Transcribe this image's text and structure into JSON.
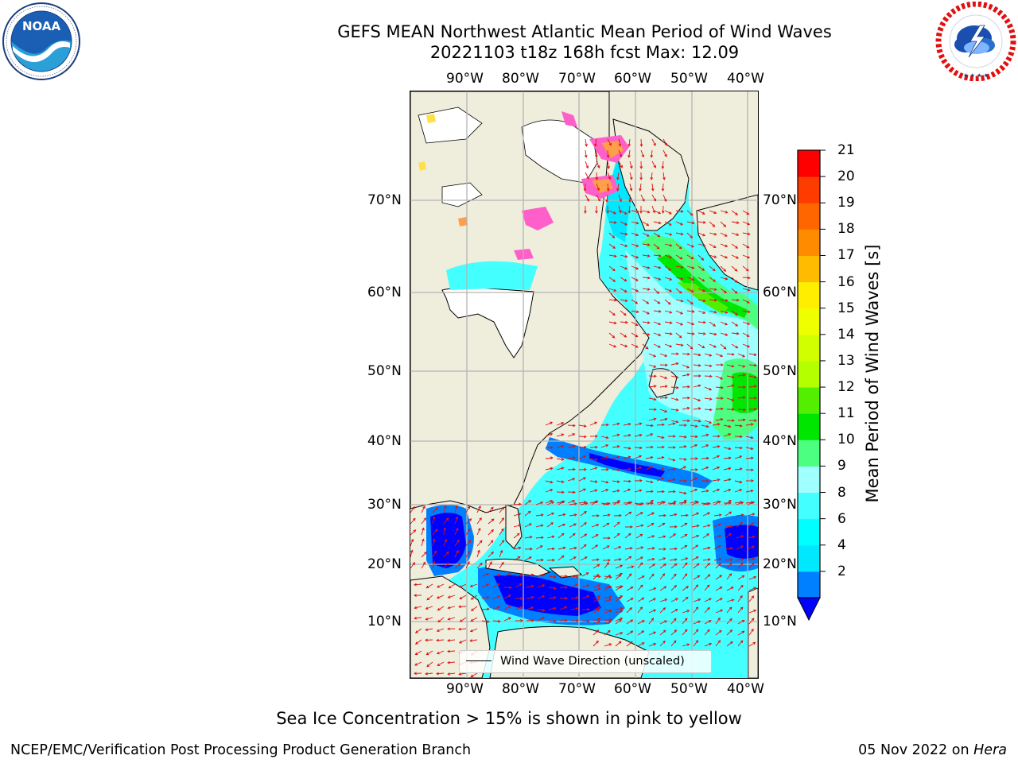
{
  "title": {
    "line1": "GEFS MEAN Northwest Atlantic Mean Period of Wind Waves",
    "line2": "20221103 t18z 168h fcst   Max: 12.09"
  },
  "logos": {
    "left": {
      "name": "NOAA",
      "icon": "noaa-logo",
      "ring_text": "NATIONAL OCEANIC AND ATMOSPHERIC ADMINISTRATION · U.S. DEPARTMENT OF COMMERCE"
    },
    "right": {
      "name": "NATIONAL WEATHER SERVICE",
      "icon": "nws-logo"
    }
  },
  "map": {
    "lon_labels": [
      "90°W",
      "80°W",
      "70°W",
      "60°W",
      "50°W",
      "40°W"
    ],
    "lat_labels": [
      "70°N",
      "60°N",
      "50°N",
      "40°N",
      "30°N",
      "20°N",
      "10°N"
    ],
    "land_color": "#efeddc",
    "ice_colors": [
      "#ff5fc8",
      "#ff9f4a",
      "#ffe04a"
    ],
    "legend": {
      "label": "Wind Wave Direction (unscaled)"
    }
  },
  "colorbar": {
    "label": "Mean Period of Wind Waves [s]",
    "ticks": [
      "21",
      "20",
      "19",
      "18",
      "17",
      "16",
      "15",
      "14",
      "13",
      "12",
      "11",
      "10",
      "9",
      "8",
      "6",
      "4",
      "2"
    ],
    "bins_bottom_to_top": [
      {
        "from": 2,
        "to": 4,
        "color": "#0080ff"
      },
      {
        "from": 4,
        "to": 6,
        "color": "#00e8ff"
      },
      {
        "from": 6,
        "to": 7,
        "color": "#00ffff"
      },
      {
        "from": 7,
        "to": 8,
        "color": "#44ffff"
      },
      {
        "from": 8,
        "to": 9,
        "color": "#a0ffff"
      },
      {
        "from": 9,
        "to": 10,
        "color": "#4cff80"
      },
      {
        "from": 10,
        "to": 11,
        "color": "#00e600"
      },
      {
        "from": 11,
        "to": 12,
        "color": "#54ee00"
      },
      {
        "from": 12,
        "to": 13,
        "color": "#b4ff00"
      },
      {
        "from": 13,
        "to": 14,
        "color": "#d2ff00"
      },
      {
        "from": 14,
        "to": 15,
        "color": "#f0ff00"
      },
      {
        "from": 15,
        "to": 16,
        "color": "#ffee00"
      },
      {
        "from": 16,
        "to": 17,
        "color": "#ffbb00"
      },
      {
        "from": 17,
        "to": 18,
        "color": "#ff8c00"
      },
      {
        "from": 18,
        "to": 19,
        "color": "#ff6600"
      },
      {
        "from": 19,
        "to": 20,
        "color": "#ff3c00"
      },
      {
        "from": 20,
        "to": 21,
        "color": "#ff0000"
      }
    ],
    "under_color": "#0000ff"
  },
  "note": "Sea Ice Concentration > 15% is shown in pink to yellow",
  "footer": {
    "left": "NCEP/EMC/Verification Post Processing Product Generation Branch",
    "date": "05 Nov 2022 on",
    "host": "Hera"
  }
}
